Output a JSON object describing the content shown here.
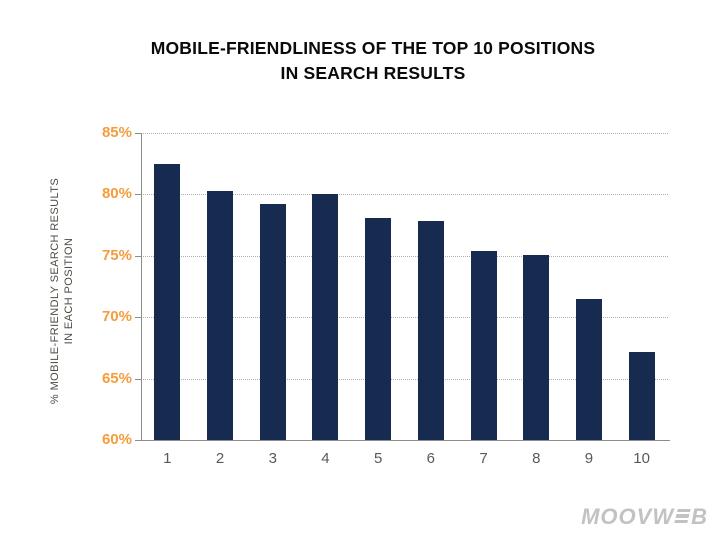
{
  "slide": {
    "title_line1": "MOBILE-FRIENDLINESS OF THE TOP 10 POSITIONS",
    "title_line2": "IN SEARCH RESULTS"
  },
  "chart_data": {
    "type": "bar",
    "title": "MOBILE-FRIENDLINESS OF THE TOP 10 POSITIONS IN SEARCH RESULTS",
    "title_lines": [
      "MOBILE-FRIENDLINESS OF THE TOP 10 POSITIONS",
      "IN SEARCH RESULTS"
    ],
    "xlabel": "",
    "ylabel": "% MOBILE-FRIENDLY SEARCH RESULTS IN EACH POSITION",
    "ylabel_lines": [
      "% MOBILE-FRIENDLY SEARCH RESULTS",
      "IN EACH POSITION"
    ],
    "categories": [
      "1",
      "2",
      "3",
      "4",
      "5",
      "6",
      "7",
      "8",
      "9",
      "10"
    ],
    "values": [
      82.5,
      80.3,
      79.2,
      80.0,
      78.1,
      77.8,
      75.4,
      75.1,
      71.5,
      67.2
    ],
    "ylim": [
      60,
      85
    ],
    "yticks": [
      {
        "value": 60,
        "label": "60%"
      },
      {
        "value": 65,
        "label": "65%"
      },
      {
        "value": 70,
        "label": "70%"
      },
      {
        "value": 75,
        "label": "75%"
      },
      {
        "value": 80,
        "label": "80%"
      },
      {
        "value": 85,
        "label": "85%"
      }
    ],
    "grid": "horizontal-dotted",
    "legend": "none",
    "colors": {
      "bar": "#172a4f",
      "ytick_label": "#f59c3b",
      "xtick_label": "#595959",
      "gridline": "#afafaf",
      "axis_line": "#8c8c8c",
      "title_text": "#0a0a0a",
      "ylabel_text": "#4c4c44"
    }
  },
  "branding": {
    "logo_full": "MOOVWEB",
    "logo_prefix": "MOOVW",
    "logo_suffix": "B",
    "logo_color": "#c0c2c4"
  }
}
